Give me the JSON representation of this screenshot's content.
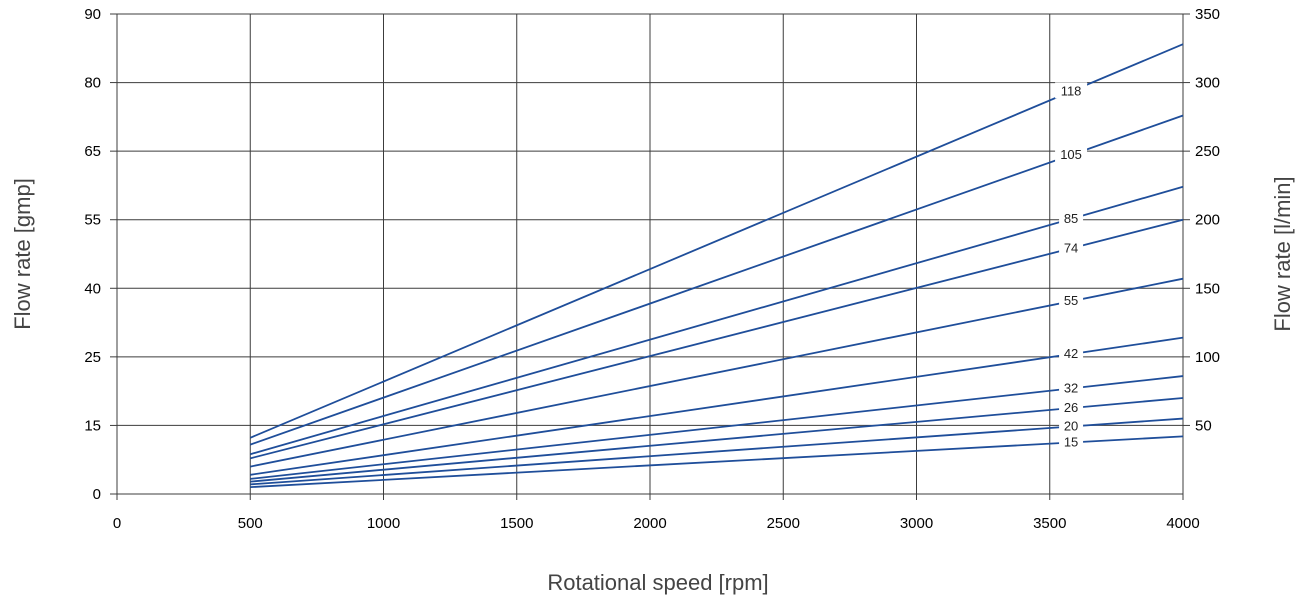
{
  "chart_data": {
    "type": "line",
    "title": "",
    "xlabel": "Rotational speed [rpm]",
    "ylabel_left": "Flow rate [gmp]",
    "ylabel_right": "Flow rate [l/min]",
    "x_ticks": [
      "0",
      "500",
      "1000",
      "1500",
      "2000",
      "2500",
      "3000",
      "3500",
      "4000"
    ],
    "x_values": [
      0,
      500,
      1000,
      1500,
      2000,
      2500,
      3000,
      3500,
      4000
    ],
    "xlim": [
      0,
      4000
    ],
    "y_left_ticks": [
      "0",
      "15",
      "25",
      "40",
      "55",
      "65",
      "80",
      "90"
    ],
    "y_right_ticks": [
      "50",
      "100",
      "150",
      "200",
      "250",
      "300",
      "350"
    ],
    "y_right_values": [
      50,
      100,
      150,
      200,
      250,
      300,
      350
    ],
    "ylim_right": [
      0,
      350
    ],
    "grid": true,
    "line_color": "#1f4e9a",
    "series": [
      {
        "name": "118",
        "x": [
          500,
          4000
        ],
        "y": [
          41,
          328
        ]
      },
      {
        "name": "105",
        "x": [
          500,
          4000
        ],
        "y": [
          36,
          276
        ]
      },
      {
        "name": "85",
        "x": [
          500,
          4000
        ],
        "y": [
          29,
          224
        ]
      },
      {
        "name": "74",
        "x": [
          500,
          4000
        ],
        "y": [
          26,
          200
        ]
      },
      {
        "name": "55",
        "x": [
          500,
          4000
        ],
        "y": [
          20,
          157
        ]
      },
      {
        "name": "42",
        "x": [
          500,
          4000
        ],
        "y": [
          14,
          114
        ]
      },
      {
        "name": "32",
        "x": [
          500,
          4000
        ],
        "y": [
          11,
          86
        ]
      },
      {
        "name": "26",
        "x": [
          500,
          4000
        ],
        "y": [
          9,
          70
        ]
      },
      {
        "name": "20",
        "x": [
          500,
          4000
        ],
        "y": [
          7,
          55
        ]
      },
      {
        "name": "15",
        "x": [
          500,
          4000
        ],
        "y": [
          5,
          42
        ]
      }
    ]
  },
  "colors": {
    "grid": "#3c3c3c",
    "line": "#1f4e9a",
    "text": "#000000"
  }
}
